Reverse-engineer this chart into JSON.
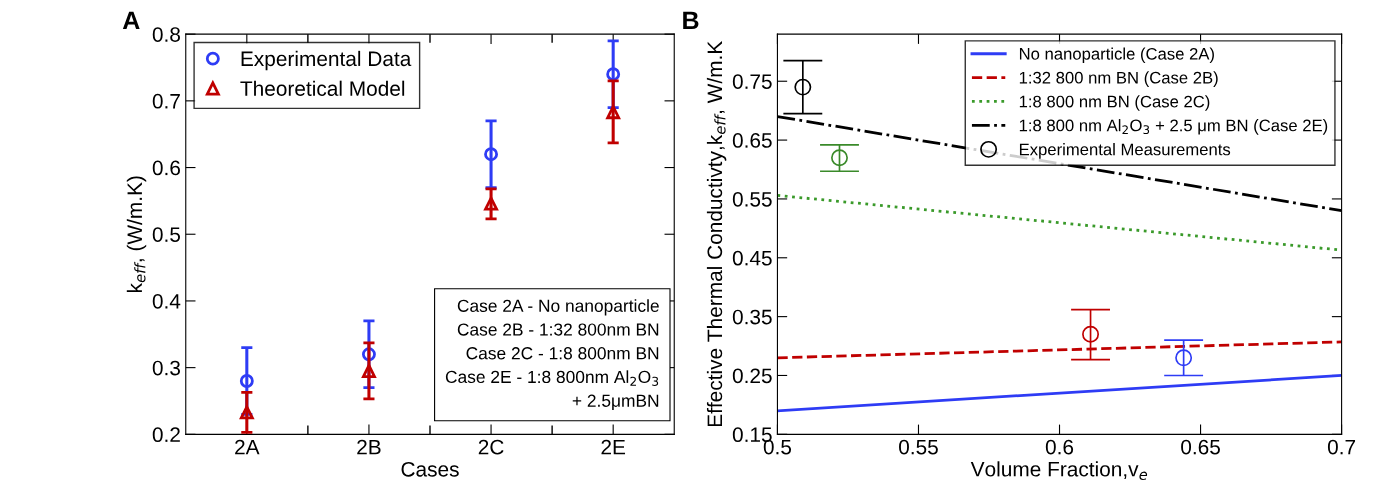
{
  "chart_data": [
    {
      "type": "scatter",
      "annotations": [
        "A",
        "Case 2A - No nanoparticle\nCase 2B - 1:32 800nm BN\nCase 2C - 1:8 800nm BN\nCase 2E - 1:8 800nm Al$_{2}$O$_{3}$\n      + 2.5μmBN"
      ],
      "xlabel": "Cases",
      "ylabel": "k$_{eff}$, (W/m.K)",
      "categories": [
        "2A",
        "2B",
        "2C",
        "2E"
      ],
      "ylim": [
        0.2,
        0.8
      ],
      "yticks": [
        0.2,
        0.3,
        0.4,
        0.5,
        0.6,
        0.7,
        0.8
      ],
      "grid": false,
      "legend": "top left",
      "series": [
        {
          "name": "Experimental Data",
          "color": "#2e3cf5",
          "marker": "circle",
          "values": [
            0.28,
            0.32,
            0.62,
            0.74
          ],
          "errors": [
            [
              0.23,
              0.33
            ],
            [
              0.27,
              0.37
            ],
            [
              0.57,
              0.67
            ],
            [
              0.69,
              0.79
            ]
          ]
        },
        {
          "name": "Theoretical Model",
          "color": "#c00000",
          "marker": "triangle",
          "values": [
            0.233,
            0.295,
            0.546,
            0.683
          ],
          "errors": [
            [
              0.203,
              0.263
            ],
            [
              0.253,
              0.337
            ],
            [
              0.523,
              0.568
            ],
            [
              0.637,
              0.73
            ]
          ]
        }
      ]
    },
    {
      "type": "line",
      "annotations": [
        "B"
      ],
      "xlabel": "Volume Fraction,v$_{e}$",
      "ylabel": "Effective Thermal Conductivty,k$_{eff}$, W/m.K",
      "xlim": [
        0.5,
        0.7
      ],
      "xticks": [
        0.5,
        0.55,
        0.6,
        0.65,
        0.7
      ],
      "ylim": [
        0.15,
        0.83
      ],
      "yticks": [
        0.15,
        0.25,
        0.35,
        0.45,
        0.55,
        0.65,
        0.75
      ],
      "grid": false,
      "legend": "top right",
      "series": [
        {
          "name": "No nanoparticle (Case 2A)",
          "color": "#2e3cf5",
          "line_style": "solid",
          "x": [
            0.5,
            0.7
          ],
          "values": [
            0.19,
            0.25
          ]
        },
        {
          "name": "1:32 800 nm BN (Case 2B)",
          "color": "#c00000",
          "line_style": "dashed",
          "x": [
            0.5,
            0.7
          ],
          "values": [
            0.28,
            0.307
          ]
        },
        {
          "name": "1:8 800 nm BN (Case 2C)",
          "color": "#3a9a2a",
          "line_style": "dotted",
          "x": [
            0.5,
            0.7
          ],
          "values": [
            0.556,
            0.463
          ]
        },
        {
          "name": "1:8 800 nm Al$_{2}$O$_{3}$ + 2.5 μm BN (Case 2E)",
          "color": "#000000",
          "line_style": "dashdot",
          "x": [
            0.5,
            0.7
          ],
          "values": [
            0.69,
            0.53
          ]
        },
        {
          "name": "Experimental Measurements",
          "type": "scatter",
          "marker": "circle",
          "color": "#000000",
          "colors": [
            "#000000",
            "#3a8a2a",
            "#c00000",
            "#2e3cf5"
          ],
          "x": [
            0.509,
            0.522,
            0.611,
            0.644
          ],
          "values": [
            0.74,
            0.62,
            0.32,
            0.28
          ],
          "errors": [
            [
              0.695,
              0.785
            ],
            [
              0.597,
              0.642
            ],
            [
              0.277,
              0.362
            ],
            [
              0.25,
              0.31
            ]
          ]
        }
      ]
    }
  ]
}
